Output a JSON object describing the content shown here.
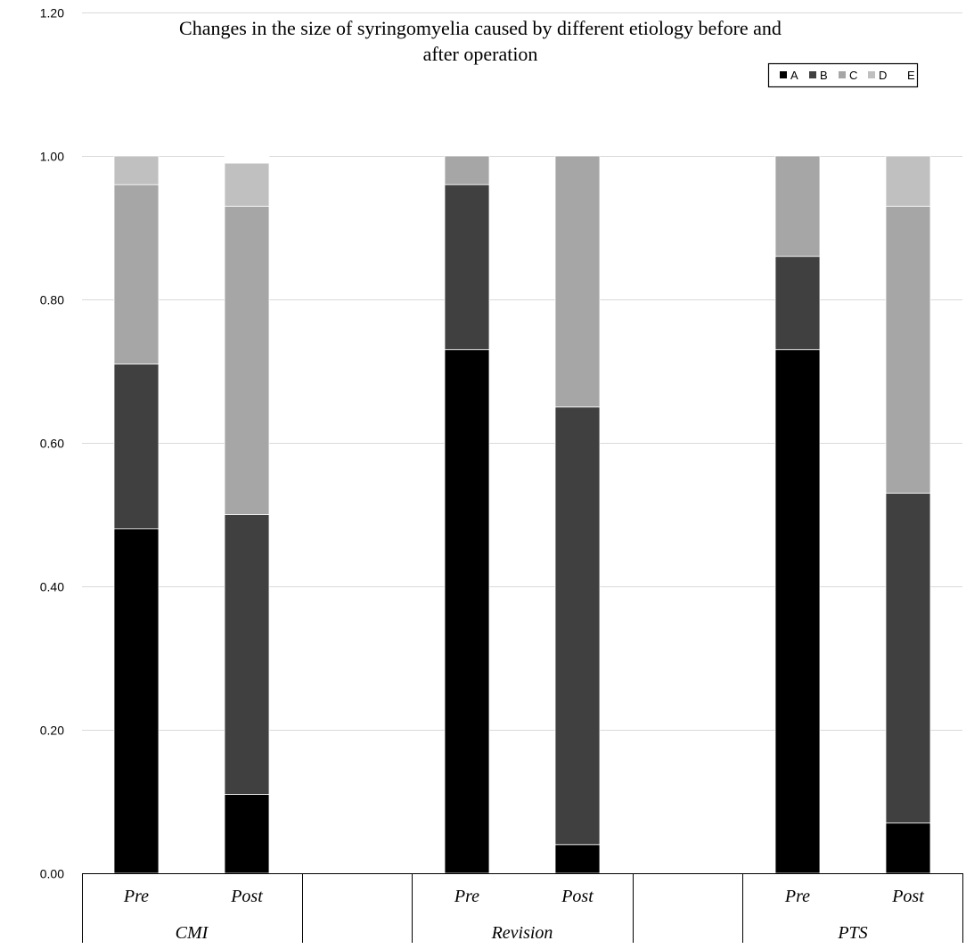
{
  "chart_data": {
    "type": "bar",
    "stacked": true,
    "title_lines": [
      "Changes in the size of syringomyelia caused by different etiology before and",
      "after operation"
    ],
    "ylim": [
      0,
      1.2
    ],
    "yticks": [
      "0.00",
      "0.20",
      "0.40",
      "0.60",
      "0.80",
      "1.00",
      "1.20"
    ],
    "ytick_values": [
      0,
      0.2,
      0.4,
      0.6,
      0.8,
      1.0,
      1.2
    ],
    "groups": [
      "CMI",
      "Revision",
      "PTS"
    ],
    "sub_categories": [
      "Pre",
      "Post"
    ],
    "categories": [
      "CMI Pre",
      "CMI Post",
      "Revision Pre",
      "Revision Post",
      "PTS Pre",
      "PTS Post"
    ],
    "series": [
      {
        "name": "A",
        "color": "#000000",
        "values": [
          0.48,
          0.11,
          0.73,
          0.04,
          0.73,
          0.07
        ]
      },
      {
        "name": "B",
        "color": "#404040",
        "values": [
          0.23,
          0.39,
          0.23,
          0.61,
          0.13,
          0.46
        ]
      },
      {
        "name": "C",
        "color": "#a6a6a6",
        "values": [
          0.25,
          0.43,
          0.04,
          0.35,
          0.14,
          0.4
        ]
      },
      {
        "name": "D",
        "color": "#c0c0c0",
        "values": [
          0.04,
          0.06,
          0.0,
          0.0,
          0.0,
          0.07
        ]
      },
      {
        "name": "E",
        "color": "#ffffff",
        "values": [
          0.0,
          0.01,
          0.0,
          0.0,
          0.0,
          0.0
        ]
      }
    ],
    "legend_position": "top-right",
    "grid": true
  }
}
